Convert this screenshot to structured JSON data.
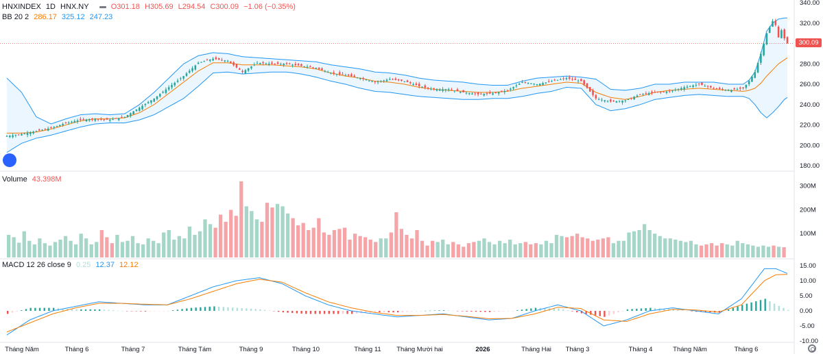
{
  "legend": {
    "symbol": "HNXINDEX",
    "interval": "1D",
    "exchange": "HNX.NY",
    "open": "O301.18",
    "high": "H305.69",
    "low": "L294.54",
    "close": "C300.09",
    "change": "−1.06 (−0.35%)",
    "bb_label": "BB 20 2",
    "bb_basis": "286.17",
    "bb_upper": "325.12",
    "bb_lower": "247.23",
    "vol_label": "Volume",
    "vol_value": "43.398M",
    "macd_label": "MACD 12 26 close 9",
    "macd_hist": "0.25",
    "macd_line": "12.37",
    "macd_signal": "12.12"
  },
  "price_tag": "300.09",
  "colors": {
    "up": "#26a69a",
    "down": "#ef5350",
    "basis": "#f57c00",
    "band": "#2196f3",
    "fill": "#e3f2fd"
  },
  "chart_data": [
    {
      "type": "candlestick",
      "title": "HNXINDEX 1D HNX.NY",
      "y_ticks": [
        "340.00",
        "320.00",
        "300.00",
        "280.00",
        "260.00",
        "240.00",
        "220.00",
        "200.00",
        "180.00"
      ],
      "ylim": [
        180,
        340
      ],
      "x_ticks": [
        "Tháng Năm",
        "Tháng 6",
        "Tháng 7",
        "Tháng Tám",
        "Tháng 9",
        "Tháng 10",
        "Tháng 11",
        "Tháng Mười hai",
        "2026",
        "Tháng Hai",
        "Tháng 3",
        "Tháng 4",
        "Tháng Năm",
        "Tháng 6"
      ],
      "last_close": 300.09,
      "close_path": [
        [
          0,
          209
        ],
        [
          5,
          211
        ],
        [
          10,
          214
        ],
        [
          15,
          217
        ],
        [
          20,
          222
        ],
        [
          25,
          225
        ],
        [
          30,
          226
        ],
        [
          35,
          225
        ],
        [
          40,
          228
        ],
        [
          45,
          237
        ],
        [
          50,
          246
        ],
        [
          55,
          257
        ],
        [
          60,
          268
        ],
        [
          65,
          281
        ],
        [
          70,
          285
        ],
        [
          75,
          283
        ],
        [
          80,
          272
        ],
        [
          85,
          281
        ],
        [
          90,
          280
        ],
        [
          95,
          280
        ],
        [
          100,
          278
        ],
        [
          105,
          276
        ],
        [
          110,
          271
        ],
        [
          115,
          269
        ],
        [
          120,
          266
        ],
        [
          125,
          262
        ],
        [
          130,
          265
        ],
        [
          135,
          263
        ],
        [
          140,
          258
        ],
        [
          145,
          255
        ],
        [
          150,
          255
        ],
        [
          155,
          252
        ],
        [
          160,
          250
        ],
        [
          165,
          251
        ],
        [
          170,
          254
        ],
        [
          175,
          262
        ],
        [
          180,
          260
        ],
        [
          185,
          263
        ],
        [
          190,
          266
        ],
        [
          195,
          263
        ],
        [
          200,
          246
        ],
        [
          205,
          243
        ],
        [
          210,
          244
        ],
        [
          215,
          250
        ],
        [
          220,
          252
        ],
        [
          225,
          253
        ],
        [
          230,
          257
        ],
        [
          235,
          260
        ],
        [
          240,
          256
        ],
        [
          245,
          254
        ],
        [
          250,
          256
        ],
        [
          252,
          263
        ],
        [
          254,
          272
        ],
        [
          256,
          290
        ],
        [
          258,
          310
        ],
        [
          260,
          322
        ],
        [
          261,
          318
        ],
        [
          262,
          306
        ],
        [
          263,
          313
        ],
        [
          264,
          305
        ],
        [
          265,
          300
        ]
      ],
      "upper_band_path": [
        [
          0,
          266
        ],
        [
          5,
          252
        ],
        [
          10,
          228
        ],
        [
          15,
          221
        ],
        [
          20,
          226
        ],
        [
          25,
          230
        ],
        [
          30,
          231
        ],
        [
          35,
          230
        ],
        [
          40,
          231
        ],
        [
          45,
          240
        ],
        [
          50,
          252
        ],
        [
          55,
          266
        ],
        [
          60,
          280
        ],
        [
          65,
          288
        ],
        [
          70,
          291
        ],
        [
          75,
          290
        ],
        [
          80,
          287
        ],
        [
          85,
          286
        ],
        [
          90,
          285
        ],
        [
          95,
          284
        ],
        [
          100,
          283
        ],
        [
          105,
          282
        ],
        [
          110,
          279
        ],
        [
          115,
          277
        ],
        [
          120,
          275
        ],
        [
          125,
          272
        ],
        [
          130,
          271
        ],
        [
          135,
          269
        ],
        [
          140,
          266
        ],
        [
          145,
          264
        ],
        [
          150,
          263
        ],
        [
          155,
          262
        ],
        [
          160,
          260
        ],
        [
          165,
          259
        ],
        [
          170,
          259
        ],
        [
          175,
          263
        ],
        [
          180,
          266
        ],
        [
          185,
          267
        ],
        [
          190,
          268
        ],
        [
          195,
          267
        ],
        [
          200,
          265
        ],
        [
          205,
          255
        ],
        [
          210,
          254
        ],
        [
          215,
          256
        ],
        [
          220,
          260
        ],
        [
          225,
          260
        ],
        [
          230,
          262
        ],
        [
          235,
          262
        ],
        [
          240,
          262
        ],
        [
          245,
          260
        ],
        [
          250,
          260
        ],
        [
          252,
          264
        ],
        [
          254,
          272
        ],
        [
          256,
          290
        ],
        [
          258,
          312
        ],
        [
          260,
          320
        ],
        [
          262,
          324
        ],
        [
          264,
          325
        ],
        [
          265,
          325
        ]
      ],
      "lower_band_path": [
        [
          0,
          193
        ],
        [
          5,
          202
        ],
        [
          10,
          207
        ],
        [
          15,
          210
        ],
        [
          20,
          214
        ],
        [
          25,
          218
        ],
        [
          30,
          221
        ],
        [
          35,
          222
        ],
        [
          40,
          222
        ],
        [
          45,
          225
        ],
        [
          50,
          230
        ],
        [
          55,
          238
        ],
        [
          60,
          246
        ],
        [
          65,
          258
        ],
        [
          70,
          271
        ],
        [
          75,
          272
        ],
        [
          80,
          270
        ],
        [
          85,
          271
        ],
        [
          90,
          272
        ],
        [
          95,
          272
        ],
        [
          100,
          270
        ],
        [
          105,
          267
        ],
        [
          110,
          263
        ],
        [
          115,
          260
        ],
        [
          120,
          256
        ],
        [
          125,
          253
        ],
        [
          130,
          252
        ],
        [
          135,
          250
        ],
        [
          140,
          248
        ],
        [
          145,
          247
        ],
        [
          150,
          246
        ],
        [
          155,
          245
        ],
        [
          160,
          245
        ],
        [
          165,
          246
        ],
        [
          170,
          246
        ],
        [
          175,
          248
        ],
        [
          180,
          251
        ],
        [
          185,
          253
        ],
        [
          190,
          257
        ],
        [
          195,
          256
        ],
        [
          200,
          240
        ],
        [
          205,
          234
        ],
        [
          210,
          236
        ],
        [
          215,
          240
        ],
        [
          220,
          245
        ],
        [
          225,
          247
        ],
        [
          230,
          249
        ],
        [
          235,
          250
        ],
        [
          240,
          249
        ],
        [
          245,
          248
        ],
        [
          250,
          248
        ],
        [
          252,
          246
        ],
        [
          254,
          240
        ],
        [
          256,
          232
        ],
        [
          258,
          227
        ],
        [
          260,
          232
        ],
        [
          262,
          238
        ],
        [
          264,
          245
        ],
        [
          265,
          247
        ]
      ],
      "basis_path": [
        [
          0,
          212
        ],
        [
          5,
          212
        ],
        [
          10,
          213
        ],
        [
          15,
          216
        ],
        [
          20,
          220
        ],
        [
          25,
          224
        ],
        [
          30,
          226
        ],
        [
          35,
          226
        ],
        [
          40,
          227
        ],
        [
          45,
          232
        ],
        [
          50,
          240
        ],
        [
          55,
          251
        ],
        [
          60,
          262
        ],
        [
          65,
          273
        ],
        [
          70,
          281
        ],
        [
          75,
          281
        ],
        [
          80,
          279
        ],
        [
          85,
          279
        ],
        [
          90,
          279
        ],
        [
          95,
          278
        ],
        [
          100,
          277
        ],
        [
          105,
          275
        ],
        [
          110,
          271
        ],
        [
          115,
          268
        ],
        [
          120,
          266
        ],
        [
          125,
          263
        ],
        [
          130,
          262
        ],
        [
          135,
          260
        ],
        [
          140,
          257
        ],
        [
          145,
          255
        ],
        [
          150,
          254
        ],
        [
          155,
          253
        ],
        [
          160,
          252
        ],
        [
          165,
          252
        ],
        [
          170,
          253
        ],
        [
          175,
          256
        ],
        [
          180,
          258
        ],
        [
          185,
          260
        ],
        [
          190,
          262
        ],
        [
          195,
          261
        ],
        [
          200,
          252
        ],
        [
          205,
          247
        ],
        [
          210,
          245
        ],
        [
          215,
          248
        ],
        [
          220,
          252
        ],
        [
          225,
          254
        ],
        [
          230,
          255
        ],
        [
          235,
          256
        ],
        [
          240,
          255
        ],
        [
          245,
          254
        ],
        [
          250,
          253
        ],
        [
          252,
          254
        ],
        [
          254,
          256
        ],
        [
          256,
          261
        ],
        [
          258,
          268
        ],
        [
          260,
          274
        ],
        [
          262,
          280
        ],
        [
          264,
          284
        ],
        [
          265,
          286
        ]
      ]
    },
    {
      "type": "bar",
      "title": "Volume",
      "y_ticks": [
        "300M",
        "200M",
        "100M"
      ],
      "ylim": [
        0,
        330
      ],
      "last_value": "43.398M",
      "values_M": [
        95,
        85,
        62,
        110,
        70,
        55,
        80,
        60,
        50,
        65,
        75,
        90,
        70,
        55,
        100,
        80,
        55,
        65,
        115,
        85,
        60,
        95,
        65,
        70,
        90,
        60,
        55,
        80,
        70,
        60,
        105,
        115,
        75,
        90,
        80,
        130,
        95,
        110,
        160,
        140,
        125,
        180,
        150,
        200,
        175,
        320,
        215,
        195,
        160,
        150,
        230,
        210,
        225,
        215,
        185,
        165,
        135,
        145,
        115,
        125,
        165,
        105,
        95,
        115,
        120,
        125,
        75,
        100,
        90,
        85,
        75,
        65,
        80,
        80,
        105,
        190,
        120,
        95,
        80,
        115,
        70,
        50,
        70,
        65,
        75,
        55,
        65,
        55,
        45,
        60,
        65,
        70,
        80,
        65,
        55,
        70,
        60,
        75,
        55,
        60,
        65,
        55,
        60,
        55,
        70,
        60,
        95,
        90,
        85,
        90,
        100,
        85,
        80,
        70,
        75,
        80,
        85,
        60,
        70,
        70,
        105,
        110,
        115,
        140,
        115,
        100,
        90,
        80,
        80,
        75,
        70,
        65,
        70,
        55,
        50,
        55,
        60,
        50,
        60,
        55,
        50,
        70,
        60,
        55,
        50,
        45,
        50,
        45,
        50,
        45,
        43
      ]
    },
    {
      "type": "line",
      "title": "MACD 12 26 close 9",
      "y_ticks": [
        "15.00",
        "10.00",
        "5.00",
        "0.00",
        "-5.00",
        "-10.00"
      ],
      "ylim": [
        -11,
        16.5
      ],
      "macd_path": [
        [
          0,
          -8
        ],
        [
          10,
          -3
        ],
        [
          20,
          0
        ],
        [
          30,
          1.5
        ],
        [
          40,
          3
        ],
        [
          50,
          2.5
        ],
        [
          60,
          2
        ],
        [
          70,
          2
        ],
        [
          80,
          5
        ],
        [
          90,
          8
        ],
        [
          100,
          10
        ],
        [
          110,
          11
        ],
        [
          120,
          9
        ],
        [
          130,
          5
        ],
        [
          140,
          2
        ],
        [
          150,
          0
        ],
        [
          160,
          -1
        ],
        [
          170,
          -2
        ],
        [
          180,
          -1.5
        ],
        [
          190,
          -1
        ],
        [
          200,
          -2
        ],
        [
          210,
          -3
        ],
        [
          220,
          -2.5
        ],
        [
          230,
          0
        ],
        [
          240,
          2
        ],
        [
          250,
          0
        ],
        [
          260,
          -5
        ],
        [
          270,
          -3
        ],
        [
          280,
          0
        ],
        [
          290,
          1
        ],
        [
          300,
          0
        ],
        [
          310,
          -1
        ],
        [
          320,
          4
        ],
        [
          330,
          14
        ],
        [
          335,
          14
        ],
        [
          340,
          12.4
        ]
      ],
      "signal_path": [
        [
          0,
          -7
        ],
        [
          10,
          -4
        ],
        [
          20,
          -1
        ],
        [
          30,
          1
        ],
        [
          40,
          2.5
        ],
        [
          50,
          2.5
        ],
        [
          60,
          2.2
        ],
        [
          70,
          2
        ],
        [
          80,
          4
        ],
        [
          90,
          6.5
        ],
        [
          100,
          9
        ],
        [
          110,
          10.5
        ],
        [
          120,
          9.5
        ],
        [
          130,
          6
        ],
        [
          140,
          3
        ],
        [
          150,
          1
        ],
        [
          160,
          -0.5
        ],
        [
          170,
          -1.5
        ],
        [
          180,
          -1.5
        ],
        [
          190,
          -1.2
        ],
        [
          200,
          -1.8
        ],
        [
          210,
          -2.6
        ],
        [
          220,
          -2.5
        ],
        [
          230,
          -1
        ],
        [
          240,
          1.2
        ],
        [
          250,
          0.8
        ],
        [
          260,
          -3
        ],
        [
          270,
          -3.5
        ],
        [
          280,
          -1
        ],
        [
          290,
          0.5
        ],
        [
          300,
          0.3
        ],
        [
          310,
          -0.4
        ],
        [
          320,
          2
        ],
        [
          330,
          10
        ],
        [
          335,
          12
        ],
        [
          340,
          12.1
        ]
      ],
      "last_values": {
        "histogram": 0.25,
        "macd": 12.37,
        "signal": 12.12
      }
    }
  ]
}
